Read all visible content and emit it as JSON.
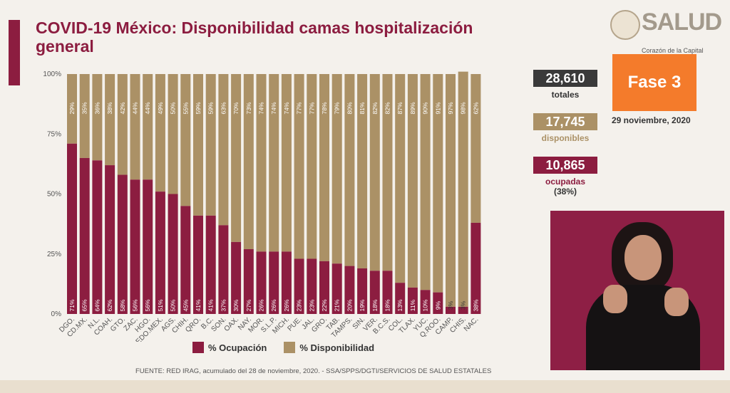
{
  "title": "COVID-19 México: Disponibilidad camas hospitalización general",
  "colors": {
    "occupancy": "#8c1d40",
    "availability": "#ab9166",
    "accent": "#8c1d40",
    "orange": "#f47b2b",
    "dark": "#3a3a3a"
  },
  "stats": {
    "total_value": "28,610",
    "total_label": "totales",
    "available_value": "17,745",
    "available_label": "disponibles",
    "occupied_value": "10,865",
    "occupied_label": "ocupadas",
    "occupied_pct": "(38%)"
  },
  "phase": "Fase 3",
  "date": "29 noviembre, 2020",
  "logo": {
    "text": "SALUD",
    "subtitle": "Corazón de la Capital"
  },
  "legend": {
    "occupancy": "% Ocupación",
    "availability": "% Disponibilidad"
  },
  "source": "FUENTE: RED IRAG, acumulado del 28 de noviembre, 2020.  -  SSA/SPPS/DGTI/SERVICIOS DE SALUD ESTATALES",
  "chart_data": {
    "type": "bar",
    "stacked": true,
    "categories": [
      "DGO.",
      "CD.MX.",
      "N.L.",
      "COAH.",
      "GTO.",
      "ZAC.",
      "HGO.",
      "EDO.MEX.",
      "AGS.",
      "CHIH.",
      "QRO.",
      "B.C.",
      "SON.",
      "OAX.",
      "NAY.",
      "MOR.",
      "S.L.P.",
      "MICH.",
      "PUE.",
      "JAL.",
      "GRO.",
      "TAB.",
      "TAMPS.",
      "SIN.",
      "VER.",
      "B.C.S.",
      "COL.",
      "TLAX.",
      "YUC.",
      "Q.ROO.",
      "CAMP.",
      "CHIS.",
      "NAC."
    ],
    "series": [
      {
        "name": "% Ocupación",
        "values": [
          71,
          65,
          64,
          62,
          58,
          56,
          56,
          51,
          50,
          45,
          41,
          41,
          37,
          30,
          27,
          26,
          26,
          26,
          23,
          23,
          22,
          21,
          20,
          19,
          18,
          18,
          13,
          11,
          10,
          9,
          3,
          3,
          38
        ]
      },
      {
        "name": "% Disponibilidad",
        "values": [
          29,
          35,
          36,
          38,
          42,
          44,
          44,
          49,
          50,
          55,
          59,
          59,
          63,
          70,
          73,
          74,
          74,
          74,
          77,
          77,
          78,
          79,
          80,
          81,
          82,
          82,
          87,
          89,
          90,
          91,
          97,
          98,
          62
        ]
      }
    ],
    "yticks": [
      "0%",
      "25%",
      "50%",
      "75%",
      "100%"
    ],
    "ylim": [
      0,
      100
    ],
    "legend_position": "bottom"
  }
}
